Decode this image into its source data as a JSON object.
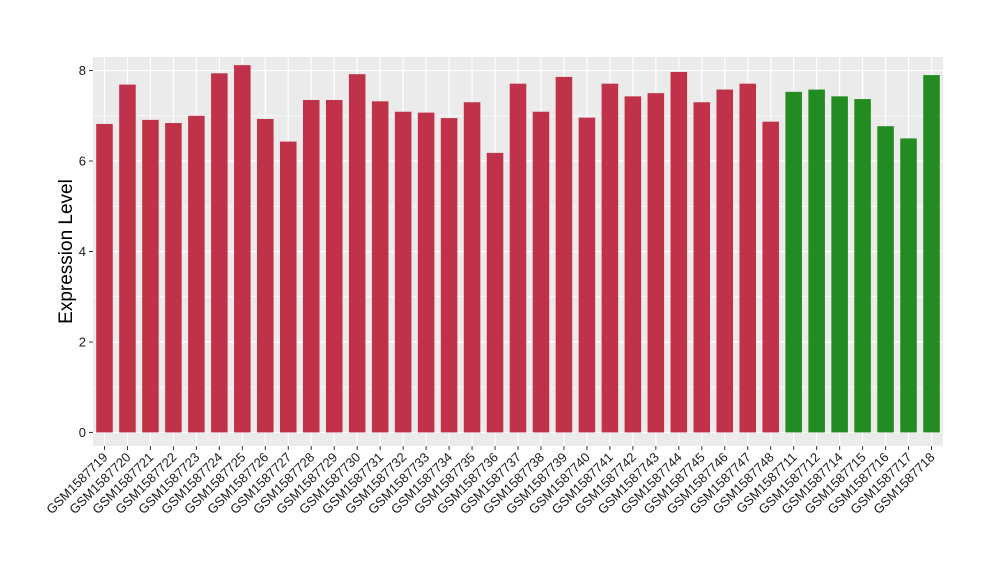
{
  "chart_data": {
    "type": "bar",
    "title": "",
    "xlabel": "",
    "ylabel": "Expression Level",
    "ylim": [
      -0.3,
      8.3
    ],
    "yticks": [
      0,
      2,
      4,
      6,
      8
    ],
    "grid": true,
    "legend": "none",
    "colors": {
      "group1": "#c0314a",
      "group2": "#228b22",
      "panel_bg": "#ebebeb",
      "grid": "#ffffff"
    },
    "categories": [
      "GSM1587719",
      "GSM1587720",
      "GSM1587721",
      "GSM1587722",
      "GSM1587723",
      "GSM1587724",
      "GSM1587725",
      "GSM1587726",
      "GSM1587727",
      "GSM1587728",
      "GSM1587729",
      "GSM1587730",
      "GSM1587731",
      "GSM1587732",
      "GSM1587733",
      "GSM1587734",
      "GSM1587735",
      "GSM1587736",
      "GSM1587737",
      "GSM1587738",
      "GSM1587739",
      "GSM1587740",
      "GSM1587741",
      "GSM1587742",
      "GSM1587743",
      "GSM1587744",
      "GSM1587745",
      "GSM1587746",
      "GSM1587747",
      "GSM1587748",
      "GSM1587711",
      "GSM1587712",
      "GSM1587714",
      "GSM1587715",
      "GSM1587716",
      "GSM1587717",
      "GSM1587718"
    ],
    "values": [
      6.82,
      7.69,
      6.91,
      6.84,
      7.0,
      7.94,
      8.12,
      6.93,
      6.43,
      7.35,
      7.35,
      7.92,
      7.32,
      7.09,
      7.07,
      6.95,
      7.3,
      6.18,
      7.71,
      7.09,
      7.86,
      6.96,
      7.71,
      7.43,
      7.5,
      7.97,
      7.3,
      7.58,
      7.71,
      6.87,
      7.53,
      7.58,
      7.43,
      7.37,
      6.77,
      6.5,
      7.9
    ],
    "groups": [
      "group1",
      "group1",
      "group1",
      "group1",
      "group1",
      "group1",
      "group1",
      "group1",
      "group1",
      "group1",
      "group1",
      "group1",
      "group1",
      "group1",
      "group1",
      "group1",
      "group1",
      "group1",
      "group1",
      "group1",
      "group1",
      "group1",
      "group1",
      "group1",
      "group1",
      "group1",
      "group1",
      "group1",
      "group1",
      "group1",
      "group2",
      "group2",
      "group2",
      "group2",
      "group2",
      "group2",
      "group2"
    ]
  }
}
